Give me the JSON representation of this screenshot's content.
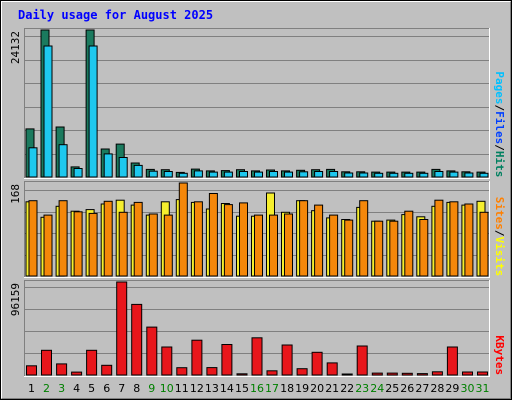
{
  "chart_data": {
    "type": "bar",
    "title": "Daily usage for August 2025",
    "categories": [
      "1",
      "2",
      "3",
      "4",
      "5",
      "6",
      "7",
      "8",
      "9",
      "10",
      "11",
      "12",
      "13",
      "14",
      "15",
      "16",
      "17",
      "18",
      "19",
      "20",
      "21",
      "22",
      "23",
      "24",
      "25",
      "26",
      "27",
      "28",
      "29",
      "30",
      "31"
    ],
    "weekend_days": [
      "2",
      "3",
      "9",
      "10",
      "16",
      "17",
      "23",
      "24",
      "30",
      "31"
    ],
    "panels": [
      {
        "id": "hits-files",
        "max_label": "24132",
        "ylim": [
          0,
          24132
        ],
        "legend": [
          {
            "text": "Pages",
            "color": "#00c0ff"
          },
          {
            "text": "/",
            "color": "#000000"
          },
          {
            "text": "Files",
            "color": "#0040ff"
          },
          {
            "text": "/",
            "color": "#000000"
          },
          {
            "text": "Hits",
            "color": "#008060"
          }
        ],
        "series": [
          {
            "name": "Hits",
            "color": "#1b7a5e",
            "values": [
              7900,
              24132,
              8200,
              1650,
              24132,
              4600,
              5400,
              2300,
              1250,
              1200,
              750,
              1300,
              1000,
              1050,
              1200,
              1000,
              1150,
              1000,
              1100,
              1200,
              1250,
              850,
              850,
              800,
              800,
              800,
              800,
              1250,
              1000,
              850,
              800
            ]
          },
          {
            "name": "Files",
            "color": "#1ec8ee",
            "values": [
              4800,
              21500,
              5300,
              1400,
              21500,
              3800,
              3200,
              1900,
              950,
              900,
              600,
              1000,
              800,
              800,
              900,
              800,
              900,
              800,
              850,
              900,
              900,
              650,
              650,
              600,
              600,
              600,
              600,
              900,
              800,
              650,
              600
            ]
          }
        ]
      },
      {
        "id": "visits-sites",
        "max_label": "168",
        "ylim": [
          0,
          168
        ],
        "legend": [
          {
            "text": "Sites",
            "color": "#ff8000"
          },
          {
            "text": "/",
            "color": "#000000"
          },
          {
            "text": "Visits",
            "color": "#ffff00"
          }
        ],
        "series": [
          {
            "name": "Visits",
            "color": "#f5ee2e",
            "values": [
              134,
              106,
              126,
              117,
              120,
              130,
              137,
              128,
              110,
              134,
              138,
              133,
              121,
              131,
              108,
              108,
              150,
              115,
              136,
              118,
              105,
              102,
              124,
              99,
              101,
              111,
              107,
              126,
              133,
              128,
              135
            ]
          },
          {
            "name": "Sites",
            "color": "#f4870a",
            "values": [
              136,
              110,
              136,
              116,
              113,
              135,
              115,
              133,
              112,
              110,
              168,
              134,
              149,
              129,
              132,
              110,
              110,
              112,
              136,
              128,
              110,
              101,
              136,
              99,
              99,
              117,
              102,
              137,
              134,
              130,
              115
            ]
          }
        ]
      },
      {
        "id": "kbytes",
        "max_label": "96159",
        "ylim": [
          0,
          96159
        ],
        "legend": [
          {
            "text": "KBytes",
            "color": "#ff0000"
          }
        ],
        "series": [
          {
            "name": "KBytes",
            "color": "#e8161b",
            "values": [
              9500,
              25500,
              11500,
              3000,
              25500,
              10000,
              96159,
              73000,
              49500,
              29000,
              7500,
              36000,
              7700,
              31500,
              1200,
              38500,
              4300,
              31000,
              6500,
              23500,
              12500,
              1000,
              30000,
              2000,
              2000,
              1800,
              1400,
              3300,
              29000,
              3100,
              3100
            ]
          }
        ]
      }
    ]
  }
}
